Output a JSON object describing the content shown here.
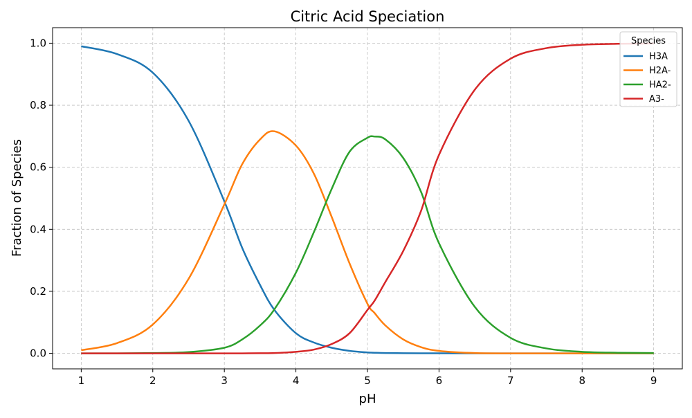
{
  "chart_data": {
    "type": "line",
    "title": "Citric Acid Speciation",
    "xlabel": "pH",
    "ylabel": "Fraction of Species",
    "xlim": [
      0.6,
      9.4
    ],
    "ylim": [
      -0.05,
      1.05
    ],
    "x_ticks": [
      1,
      2,
      3,
      4,
      5,
      6,
      7,
      8,
      9
    ],
    "y_ticks": [
      0.0,
      0.2,
      0.4,
      0.6,
      0.8,
      1.0
    ],
    "x_tick_labels": [
      "1",
      "2",
      "3",
      "4",
      "5",
      "6",
      "7",
      "8",
      "9"
    ],
    "y_tick_labels": [
      "0.0",
      "0.2",
      "0.4",
      "0.6",
      "0.8",
      "1.0"
    ],
    "grid": true,
    "legend": {
      "title": "Species",
      "position": "top-right"
    },
    "x": [
      1.0,
      1.5,
      2.0,
      2.5,
      3.0,
      3.25,
      3.5,
      3.7,
      4.0,
      4.25,
      4.5,
      4.75,
      5.0,
      5.1,
      5.25,
      5.5,
      5.75,
      6.0,
      6.5,
      7.0,
      7.5,
      8.0,
      8.5,
      9.0
    ],
    "series": [
      {
        "name": "H3A",
        "color": "#1f77b4",
        "values": [
          0.99,
          0.965,
          0.905,
          0.75,
          0.49,
          0.34,
          0.22,
          0.14,
          0.065,
          0.035,
          0.018,
          0.008,
          0.003,
          0.002,
          0.001,
          0.0005,
          0.0002,
          0.0001,
          0.0,
          0.0,
          0.0,
          0.0,
          0.0,
          0.0
        ]
      },
      {
        "name": "H2A-",
        "color": "#ff7f0e",
        "values": [
          0.01,
          0.033,
          0.093,
          0.24,
          0.48,
          0.61,
          0.69,
          0.716,
          0.67,
          0.58,
          0.44,
          0.29,
          0.16,
          0.13,
          0.09,
          0.045,
          0.02,
          0.008,
          0.001,
          0.0,
          0.0,
          0.0,
          0.0,
          0.0
        ]
      },
      {
        "name": "HA2-",
        "color": "#2ca02c",
        "values": [
          0.0,
          0.0,
          0.001,
          0.004,
          0.018,
          0.045,
          0.09,
          0.142,
          0.26,
          0.39,
          0.53,
          0.65,
          0.695,
          0.699,
          0.69,
          0.63,
          0.52,
          0.355,
          0.15,
          0.05,
          0.016,
          0.005,
          0.002,
          0.001
        ]
      },
      {
        "name": "A3-",
        "color": "#d62728",
        "values": [
          0.0,
          0.0,
          0.0,
          0.0,
          0.0,
          0.0,
          0.0005,
          0.001,
          0.005,
          0.012,
          0.03,
          0.065,
          0.14,
          0.17,
          0.23,
          0.33,
          0.46,
          0.64,
          0.85,
          0.95,
          0.984,
          0.995,
          0.998,
          0.999
        ]
      }
    ]
  }
}
